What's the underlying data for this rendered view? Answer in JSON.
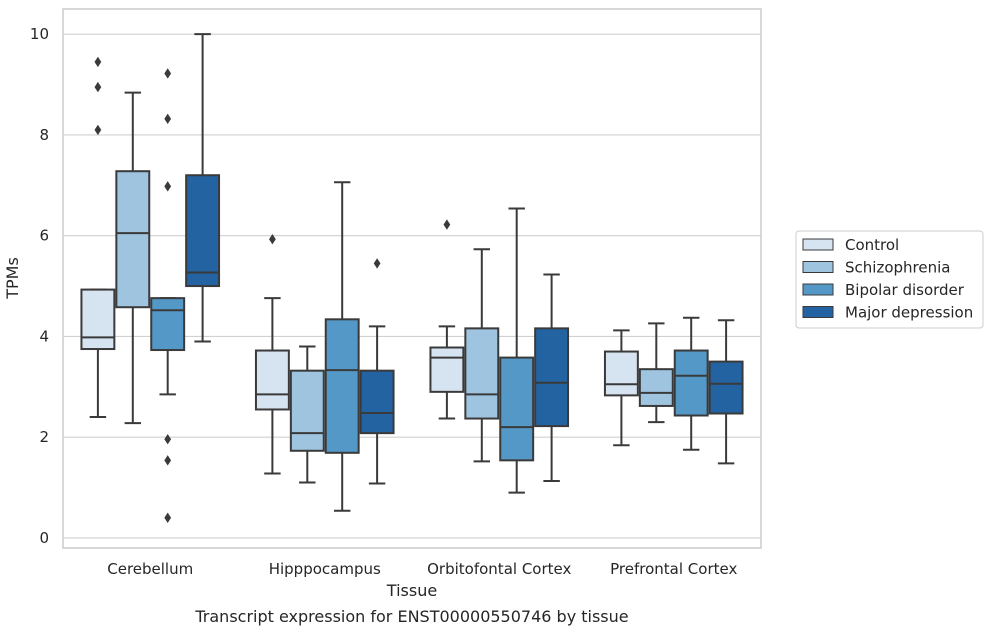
{
  "chart_data": {
    "type": "box",
    "title": "",
    "caption": "Transcript expression for ENST00000550746 by tissue",
    "xlabel": "Tissue",
    "ylabel": "TPMs",
    "ylim": [
      -0.2,
      10.5
    ],
    "yticks": [
      "0",
      "2",
      "4",
      "6",
      "8",
      "10"
    ],
    "ytick_values": [
      0,
      2,
      4,
      6,
      8,
      10
    ],
    "grid": "horizontal",
    "legend_position": "right",
    "categories": [
      "Cerebellum",
      "Hipppocampus",
      "Orbitofontal Cortex",
      "Prefrontal Cortex"
    ],
    "series": [
      {
        "name": "Control",
        "color": "#d6e4f2",
        "boxes": [
          {
            "q1": 3.75,
            "median": 3.98,
            "q3": 4.93,
            "whisker_low": 2.4,
            "whisker_high": 4.93,
            "outliers": [
              9.45,
              8.95,
              8.1
            ]
          },
          {
            "q1": 2.55,
            "median": 2.85,
            "q3": 3.72,
            "whisker_low": 1.28,
            "whisker_high": 4.76,
            "outliers": [
              5.93
            ]
          },
          {
            "q1": 2.9,
            "median": 3.58,
            "q3": 3.78,
            "whisker_low": 2.37,
            "whisker_high": 4.2,
            "outliers": [
              6.22
            ]
          },
          {
            "q1": 2.83,
            "median": 3.05,
            "q3": 3.7,
            "whisker_low": 1.84,
            "whisker_high": 4.12,
            "outliers": []
          }
        ]
      },
      {
        "name": "Schizophrenia",
        "color": "#9ec4df",
        "boxes": [
          {
            "q1": 4.58,
            "median": 6.05,
            "q3": 7.28,
            "whisker_low": 2.28,
            "whisker_high": 8.84,
            "outliers": []
          },
          {
            "q1": 1.73,
            "median": 2.08,
            "q3": 3.32,
            "whisker_low": 1.1,
            "whisker_high": 3.8,
            "outliers": []
          },
          {
            "q1": 2.37,
            "median": 2.85,
            "q3": 4.16,
            "whisker_low": 1.52,
            "whisker_high": 5.73,
            "outliers": []
          },
          {
            "q1": 2.62,
            "median": 2.88,
            "q3": 3.35,
            "whisker_low": 2.3,
            "whisker_high": 4.26,
            "outliers": []
          }
        ]
      },
      {
        "name": "Bipolar disorder",
        "color": "#5498c8",
        "boxes": [
          {
            "q1": 3.73,
            "median": 4.52,
            "q3": 4.76,
            "whisker_low": 2.85,
            "whisker_high": 4.76,
            "outliers": [
              9.22,
              8.32,
              6.98,
              1.96,
              1.54,
              0.4
            ]
          },
          {
            "q1": 1.69,
            "median": 3.33,
            "q3": 4.34,
            "whisker_low": 0.54,
            "whisker_high": 7.06,
            "outliers": []
          },
          {
            "q1": 1.54,
            "median": 2.2,
            "q3": 3.58,
            "whisker_low": 0.9,
            "whisker_high": 6.54,
            "outliers": []
          },
          {
            "q1": 2.43,
            "median": 3.22,
            "q3": 3.72,
            "whisker_low": 1.75,
            "whisker_high": 4.37,
            "outliers": []
          }
        ]
      },
      {
        "name": "Major depression",
        "color": "#2363a2",
        "boxes": [
          {
            "q1": 5.0,
            "median": 5.27,
            "q3": 7.2,
            "whisker_low": 3.9,
            "whisker_high": 10.0,
            "outliers": []
          },
          {
            "q1": 2.08,
            "median": 2.48,
            "q3": 3.32,
            "whisker_low": 1.08,
            "whisker_high": 4.2,
            "outliers": [
              5.45
            ]
          },
          {
            "q1": 2.22,
            "median": 3.08,
            "q3": 4.16,
            "whisker_low": 1.13,
            "whisker_high": 5.23,
            "outliers": []
          },
          {
            "q1": 2.47,
            "median": 3.06,
            "q3": 3.5,
            "whisker_low": 1.48,
            "whisker_high": 4.32,
            "outliers": []
          }
        ]
      }
    ]
  }
}
